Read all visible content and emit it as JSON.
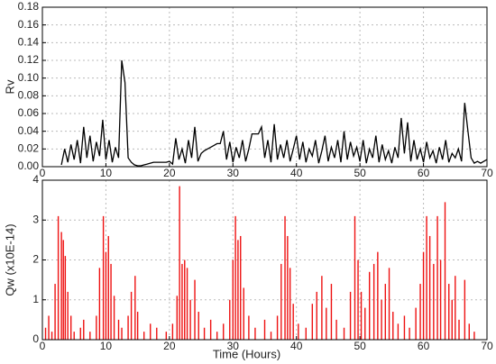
{
  "chart_data": [
    {
      "type": "line",
      "ylabel": "Rv",
      "color": "#000000",
      "grid": true,
      "xlim": [
        0,
        70
      ],
      "xticks": [
        0,
        10,
        20,
        30,
        40,
        50,
        60,
        70
      ],
      "ylim": [
        0,
        0.18
      ],
      "yticks": [
        {
          "value": 0,
          "label": "0.00"
        },
        {
          "value": 0.02,
          "label": "0.02"
        },
        {
          "value": 0.04,
          "label": "0.04"
        },
        {
          "value": 0.06,
          "label": "0.06"
        },
        {
          "value": 0.08,
          "label": "0.08"
        },
        {
          "value": 0.1,
          "label": "0.10"
        },
        {
          "value": 0.12,
          "label": "0.12"
        },
        {
          "value": 0.14,
          "label": "0.14"
        },
        {
          "value": 0.16,
          "label": "0.16"
        },
        {
          "value": 0.18,
          "label": "0.18"
        }
      ],
      "x": [
        3,
        3.5,
        4,
        4.5,
        5,
        5.5,
        6,
        6.5,
        7,
        7.5,
        8,
        8.5,
        9,
        9.5,
        10,
        10.5,
        11,
        11.5,
        12,
        12.5,
        13,
        13.5,
        14,
        14.5,
        15,
        15.5,
        16,
        16.5,
        17,
        17.5,
        18,
        18.5,
        19,
        19.5,
        20,
        20.5,
        21,
        21.5,
        22,
        22.5,
        23,
        23.5,
        24,
        24.5,
        25,
        25.5,
        26,
        26.5,
        27,
        27.5,
        28,
        28.5,
        29,
        29.5,
        30,
        30.5,
        31,
        31.5,
        32,
        32.5,
        33,
        33.5,
        34,
        34.5,
        35,
        35.5,
        36,
        36.5,
        37,
        37.5,
        38,
        38.5,
        39,
        39.5,
        40,
        40.5,
        41,
        41.5,
        42,
        42.5,
        43,
        43.5,
        44,
        44.5,
        45,
        45.5,
        46,
        46.5,
        47,
        47.5,
        48,
        48.5,
        49,
        49.5,
        50,
        50.5,
        51,
        51.5,
        52,
        52.5,
        53,
        53.5,
        54,
        54.5,
        55,
        55.5,
        56,
        56.5,
        57,
        57.5,
        58,
        58.5,
        59,
        59.5,
        60,
        60.5,
        61,
        61.5,
        62,
        62.5,
        63,
        63.5,
        64,
        64.5,
        65,
        65.5,
        66,
        66.5,
        67,
        67.5,
        68,
        68.5,
        69,
        69.5,
        70
      ],
      "values": [
        0.002,
        0.02,
        0.005,
        0.025,
        0.008,
        0.03,
        0.004,
        0.045,
        0.01,
        0.035,
        0.006,
        0.028,
        0.012,
        0.053,
        0.008,
        0.03,
        0.005,
        0.022,
        0.01,
        0.12,
        0.095,
        0.01,
        0.005,
        0.002,
        0.001,
        0.001,
        0.002,
        0.003,
        0.004,
        0.005,
        0.005,
        0.005,
        0.005,
        0.005,
        0.006,
        0.003,
        0.032,
        0.008,
        0.02,
        0.004,
        0.03,
        0.01,
        0.045,
        0.006,
        0.015,
        0.018,
        0.02,
        0.022,
        0.024,
        0.026,
        0.026,
        0.04,
        0.008,
        0.028,
        0.005,
        0.022,
        0.01,
        0.03,
        0.006,
        0.02,
        0.037,
        0.037,
        0.037,
        0.045,
        0.01,
        0.03,
        0.005,
        0.048,
        0.008,
        0.025,
        0.01,
        0.03,
        0.006,
        0.02,
        0.035,
        0.008,
        0.028,
        0.005,
        0.02,
        0.012,
        0.03,
        0.004,
        0.018,
        0.035,
        0.006,
        0.022,
        0.01,
        0.03,
        0.005,
        0.04,
        0.008,
        0.028,
        0.012,
        0.022,
        0.006,
        0.03,
        0.004,
        0.02,
        0.01,
        0.035,
        0.005,
        0.025,
        0.008,
        0.018,
        0.004,
        0.022,
        0.01,
        0.055,
        0.015,
        0.05,
        0.006,
        0.03,
        0.008,
        0.02,
        0.005,
        0.028,
        0.01,
        0.018,
        0.004,
        0.022,
        0.008,
        0.03,
        0.005,
        0.015,
        0.01,
        0.02,
        0.006,
        0.072,
        0.04,
        0.01,
        0.004,
        0.006,
        0.004,
        0.006,
        0.008
      ]
    },
    {
      "type": "bar",
      "ylabel": "Qw (x10E-14)",
      "xlabel": "Time (Hours)",
      "color": "#ee1111",
      "grid": true,
      "xlim": [
        0,
        70
      ],
      "xticks": [
        0,
        10,
        20,
        30,
        40,
        50,
        60,
        70
      ],
      "ylim": [
        0,
        4
      ],
      "yticks": [
        0,
        1,
        2,
        3,
        4
      ],
      "x": [
        0.5,
        1,
        1.5,
        2,
        2.5,
        3,
        3.3,
        3.6,
        4,
        4.5,
        5,
        6,
        6.5,
        7.5,
        8.5,
        9,
        9.6,
        10,
        10.4,
        10.8,
        11.3,
        12,
        12.5,
        13.5,
        14,
        14.6,
        15,
        16,
        17,
        18,
        19.5,
        20.5,
        21.2,
        21.6,
        22,
        22.4,
        22.8,
        23.3,
        24,
        24.6,
        25.5,
        26.5,
        27.5,
        28.5,
        29.5,
        30,
        30.4,
        30.8,
        31.2,
        31.7,
        32.5,
        33.5,
        35,
        36,
        37,
        37.6,
        38.2,
        38.6,
        39,
        39.5,
        40.3,
        41.5,
        42.5,
        43.2,
        44,
        44.7,
        45.5,
        46.3,
        47.5,
        48.5,
        49.2,
        49.7,
        50.2,
        50.8,
        51.5,
        52.2,
        52.8,
        53.4,
        54,
        54.6,
        55.2,
        56,
        57,
        57.8,
        58.8,
        59.5,
        60,
        60.5,
        61,
        61.6,
        62.2,
        62.7,
        63.4,
        64,
        64.5,
        65,
        65.6,
        66.5,
        67.2,
        68
      ],
      "values": [
        0.3,
        0.6,
        0.2,
        1.4,
        3.1,
        2.7,
        2.5,
        2.1,
        1.2,
        0.6,
        0.2,
        0.3,
        0.5,
        0.2,
        0.6,
        1.8,
        3.1,
        2.2,
        2.6,
        1.9,
        1.1,
        0.5,
        0.3,
        0.6,
        1.2,
        1.6,
        0.7,
        0.2,
        0.4,
        0.3,
        0.2,
        0.4,
        1.1,
        3.85,
        1.9,
        2.0,
        1.8,
        1.0,
        1.5,
        0.7,
        0.3,
        0.5,
        0.2,
        0.4,
        1.0,
        2.0,
        3.1,
        2.5,
        2.6,
        1.3,
        0.6,
        0.3,
        0.5,
        0.2,
        0.6,
        1.9,
        3.1,
        2.6,
        1.8,
        0.9,
        0.4,
        0.3,
        0.9,
        1.2,
        1.6,
        0.8,
        1.4,
        0.5,
        0.3,
        1.2,
        3.1,
        2.0,
        1.2,
        0.8,
        1.7,
        1.9,
        2.2,
        1.0,
        1.4,
        1.8,
        0.7,
        0.4,
        0.6,
        0.3,
        0.8,
        1.4,
        2.2,
        3.1,
        2.6,
        1.9,
        3.1,
        2.0,
        3.45,
        1.4,
        1.0,
        1.6,
        0.5,
        1.5,
        0.4,
        0.2
      ]
    }
  ]
}
